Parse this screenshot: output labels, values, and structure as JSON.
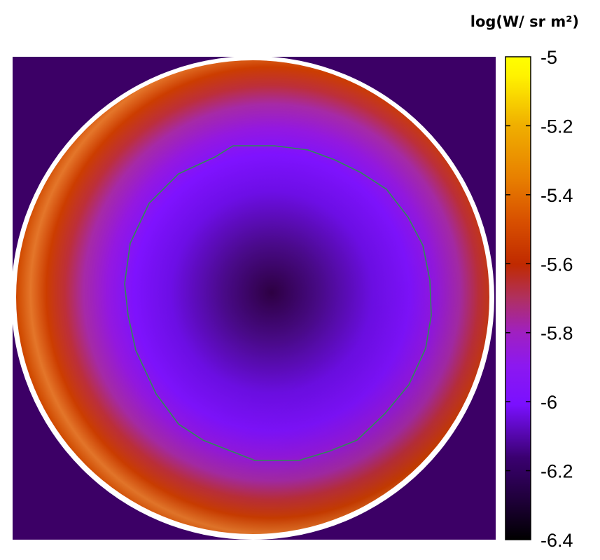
{
  "chart_data": {
    "type": "heatmap",
    "title": "",
    "colorbar": {
      "label": "log(W/ sr m²)",
      "range": [
        -6.4,
        -5.0
      ],
      "ticks": [
        -5,
        -5.2,
        -5.4,
        -5.6,
        -5.8,
        -6,
        -6.2,
        -6.4
      ],
      "tick_labels": [
        "-5",
        "-5.2",
        "-5.4",
        "-5.6",
        "-5.8",
        "-6",
        "-6.2",
        "-6.4"
      ],
      "colormap": [
        "#000000",
        "#3a0070",
        "#7a10ff",
        "#9a20e0",
        "#b0307a",
        "#c03000",
        "#e06a00",
        "#f0a000",
        "#ffe000",
        "#ffff00"
      ]
    },
    "field": {
      "shape": "disk",
      "center_value": -6.35,
      "contour_value": -6.0,
      "peak_ring_value": -5.3,
      "edge_value": -5.45,
      "background_value": -6.2
    },
    "contour_color": "#2e8b57",
    "background_color": "#3c0066"
  }
}
